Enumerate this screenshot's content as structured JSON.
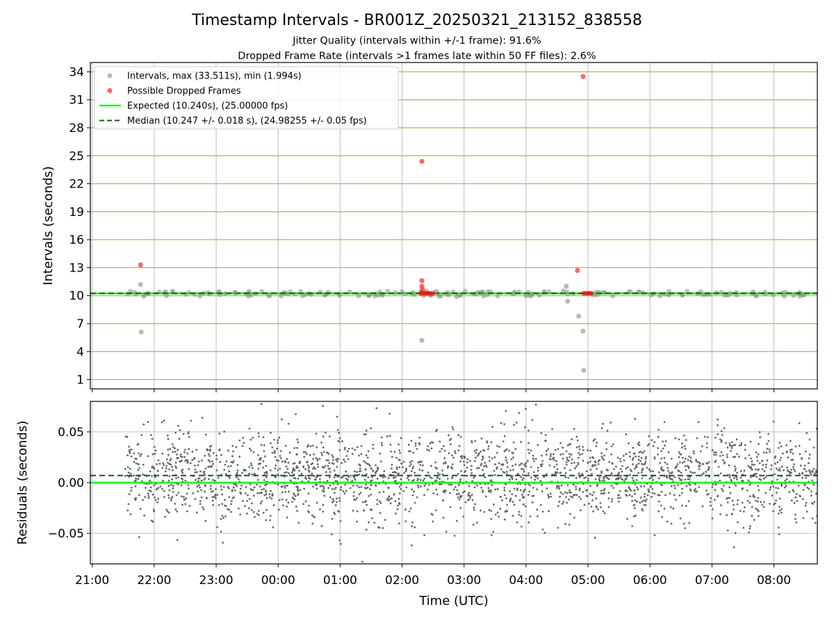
{
  "title": "Timestamp Intervals - BR001Z_20250321_213152_838558",
  "subtitle_1": "Jitter Quality (intervals within +/-1 frame): 91.6%",
  "subtitle_2": "Dropped Frame Rate (intervals >1 frames late within 50 FF files): 2.6%",
  "colors": {
    "interval_points": "#8c8c8c",
    "dropped_points": "#ff0000",
    "expected_line": "#00ff00",
    "median_line": "#006400",
    "hgrid_top": "#c8a84b",
    "grid": "#bdbdbd",
    "residual_points": "#666666"
  },
  "chart_data": [
    {
      "type": "scatter",
      "panel": "top",
      "ylabel": "Intervals (seconds)",
      "xlabel": "",
      "x_unit": "hours since 21:00 UTC",
      "xlim": [
        -0.03,
        11.7
      ],
      "ylim": [
        0,
        35
      ],
      "yticks": [
        1,
        4,
        7,
        10,
        13,
        16,
        19,
        22,
        25,
        28,
        31,
        34
      ],
      "grid": true,
      "legend_position": "top-left",
      "legend": [
        {
          "label": "Intervals, max (33.511s), min (1.994s)",
          "marker": "gray-dot"
        },
        {
          "label": "Possible Dropped Frames",
          "marker": "red-dot"
        },
        {
          "label": "Expected (10.240s), (25.00000 fps)",
          "marker": "green-line"
        },
        {
          "label": "Median (10.247 +/- 0.018 s), (24.98255 +/- 0.05 fps)",
          "marker": "darkgreen-dashed"
        }
      ],
      "expected": 10.24,
      "median": 10.247,
      "band": {
        "x_start": 0.53,
        "x_end": 11.7,
        "low": 10.14,
        "high": 10.35
      },
      "series": [
        {
          "name": "Intervals, max (33.511s), min (1.994s)",
          "points": [
            {
              "x": 0.78,
              "y": 11.2
            },
            {
              "x": 0.79,
              "y": 6.1
            },
            {
              "x": 5.32,
              "y": 5.2
            },
            {
              "x": 5.88,
              "y": 9.9
            },
            {
              "x": 7.6,
              "y": 10.5
            },
            {
              "x": 7.65,
              "y": 11.0
            },
            {
              "x": 7.67,
              "y": 9.4
            },
            {
              "x": 7.85,
              "y": 7.8
            },
            {
              "x": 7.92,
              "y": 6.2
            },
            {
              "x": 7.93,
              "y": 2.0
            },
            {
              "x": 1.2,
              "y": 10.0
            },
            {
              "x": 2.3,
              "y": 10.35
            },
            {
              "x": 3.4,
              "y": 10.0
            },
            {
              "x": 5.0,
              "y": 10.4
            },
            {
              "x": 5.55,
              "y": 10.45
            },
            {
              "x": 5.75,
              "y": 10.1
            },
            {
              "x": 6.3,
              "y": 10.4
            },
            {
              "x": 7.0,
              "y": 10.0
            }
          ]
        },
        {
          "name": "Possible Dropped Frames",
          "points": [
            {
              "x": 0.78,
              "y": 13.3
            },
            {
              "x": 5.32,
              "y": 24.4
            },
            {
              "x": 5.32,
              "y": 11.6
            },
            {
              "x": 5.32,
              "y": 11.0
            },
            {
              "x": 5.33,
              "y": 10.6
            },
            {
              "x": 7.83,
              "y": 12.7
            },
            {
              "x": 7.92,
              "y": 33.5
            },
            {
              "x": 5.3,
              "y": 10.25
            },
            {
              "x": 5.34,
              "y": 10.25
            },
            {
              "x": 5.38,
              "y": 10.25
            },
            {
              "x": 5.42,
              "y": 10.25
            },
            {
              "x": 5.46,
              "y": 10.25
            },
            {
              "x": 5.5,
              "y": 10.25
            },
            {
              "x": 7.93,
              "y": 10.25
            },
            {
              "x": 7.97,
              "y": 10.25
            },
            {
              "x": 8.01,
              "y": 10.25
            },
            {
              "x": 8.05,
              "y": 10.25
            }
          ]
        }
      ]
    },
    {
      "type": "scatter",
      "panel": "bottom",
      "ylabel": "Residuals (seconds)",
      "xlabel": "Time (UTC)",
      "x_unit": "hours since 21:00 UTC",
      "xlim": [
        -0.03,
        11.7
      ],
      "ylim": [
        -0.08,
        0.08
      ],
      "yticks": [
        0.05,
        0.0,
        -0.05
      ],
      "ytick_labels": [
        "0.05",
        "0.00",
        "−0.05"
      ],
      "xticks": [
        0,
        1,
        2,
        3,
        4,
        5,
        6,
        7,
        8,
        9,
        10,
        11
      ],
      "xtick_labels": [
        "21:00",
        "22:00",
        "23:00",
        "00:00",
        "01:00",
        "02:00",
        "03:00",
        "04:00",
        "05:00",
        "06:00",
        "07:00",
        "08:00"
      ],
      "grid": true,
      "expected_residual": 0.0,
      "median_residual": 0.007,
      "residual_spread": {
        "mean": 0.007,
        "std": 0.022,
        "x_start": 0.53,
        "x_end": 11.7,
        "count": 2400
      }
    }
  ]
}
